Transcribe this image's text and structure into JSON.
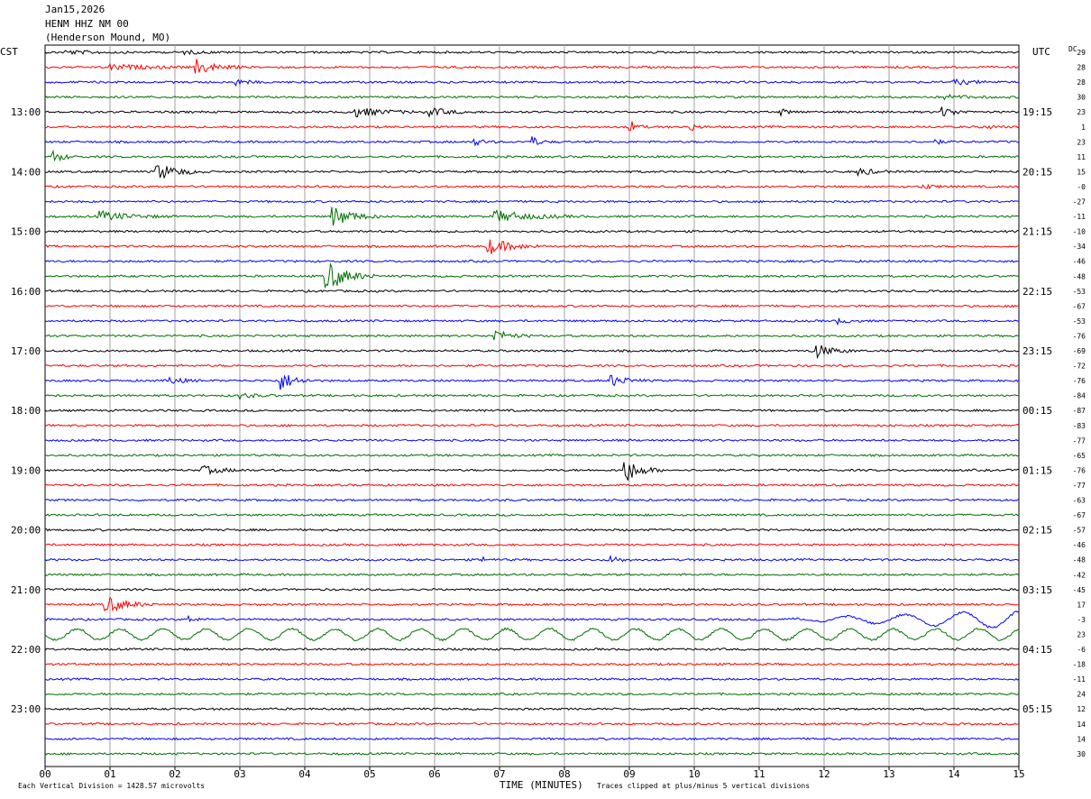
{
  "header": {
    "date": "Jan15,2026",
    "station": "HENM HHZ NM 00",
    "location": "(Henderson Mound, MO)"
  },
  "axis_labels": {
    "left": "CST",
    "right": "UTC",
    "dc": "DC",
    "x_title": "TIME (MINUTES)"
  },
  "footer": {
    "scale_note": "Each Vertical Division = 1428.57 microvolts",
    "clip_note": "Traces clipped at plus/minus 5 vertical divisions"
  },
  "colors": {
    "cycle": [
      "#000000",
      "#ff0000",
      "#0000ff",
      "#007000"
    ],
    "grid": "#a0a0a0"
  },
  "chart_data": {
    "type": "line",
    "title": "HENM HHZ NM 00",
    "xlabel": "TIME (MINUTES)",
    "xlim": [
      0,
      15
    ],
    "x_ticks": [
      "00",
      "01",
      "02",
      "03",
      "04",
      "05",
      "06",
      "07",
      "08",
      "09",
      "10",
      "11",
      "12",
      "13",
      "14",
      "15"
    ],
    "trace_count": 48,
    "left_time_labels": [
      {
        "row": 4,
        "label": "13:00"
      },
      {
        "row": 8,
        "label": "14:00"
      },
      {
        "row": 12,
        "label": "15:00"
      },
      {
        "row": 16,
        "label": "16:00"
      },
      {
        "row": 20,
        "label": "17:00"
      },
      {
        "row": 24,
        "label": "18:00"
      },
      {
        "row": 28,
        "label": "19:00"
      },
      {
        "row": 32,
        "label": "20:00"
      },
      {
        "row": 36,
        "label": "21:00"
      },
      {
        "row": 40,
        "label": "22:00"
      },
      {
        "row": 44,
        "label": "23:00"
      }
    ],
    "right_time_labels": [
      {
        "row": 4,
        "label": "19:15"
      },
      {
        "row": 8,
        "label": "20:15"
      },
      {
        "row": 12,
        "label": "21:15"
      },
      {
        "row": 16,
        "label": "22:15"
      },
      {
        "row": 20,
        "label": "23:15"
      },
      {
        "row": 24,
        "label": "00:15"
      },
      {
        "row": 28,
        "label": "01:15"
      },
      {
        "row": 32,
        "label": "02:15"
      },
      {
        "row": 36,
        "label": "03:15"
      },
      {
        "row": 40,
        "label": "04:15"
      },
      {
        "row": 44,
        "label": "05:15"
      }
    ],
    "dc_offsets": [
      "29",
      "28",
      "28",
      "30",
      "23",
      "1",
      "23",
      "11",
      "15",
      "-0",
      "-27",
      "-11",
      "-10",
      "-34",
      "-46",
      "-48",
      "-53",
      "-67",
      "-53",
      "-76",
      "-69",
      "-72",
      "-76",
      "-84",
      "-87",
      "-83",
      "-77",
      "-65",
      "-76",
      "-77",
      "-63",
      "-67",
      "-57",
      "-46",
      "-48",
      "-42",
      "-45",
      "17",
      "-3",
      "23",
      "-6",
      "-18",
      "-11",
      "24",
      "12",
      "14",
      "14",
      "30"
    ],
    "events": [
      {
        "row": 0,
        "minute": 0.3,
        "amp": 2,
        "dur": 1.2
      },
      {
        "row": 0,
        "minute": 2.1,
        "amp": 2,
        "dur": 0.8
      },
      {
        "row": 1,
        "minute": 2.3,
        "amp": 9,
        "dur": 0.8
      },
      {
        "row": 1,
        "minute": 1.0,
        "amp": 3,
        "dur": 1.5
      },
      {
        "row": 2,
        "minute": 2.9,
        "amp": 4,
        "dur": 0.5
      },
      {
        "row": 2,
        "minute": 14.0,
        "amp": 3,
        "dur": 0.8
      },
      {
        "row": 3,
        "minute": 13.8,
        "amp": 3,
        "dur": 0.9
      },
      {
        "row": 4,
        "minute": 4.7,
        "amp": 6,
        "dur": 1.2
      },
      {
        "row": 4,
        "minute": 5.9,
        "amp": 5,
        "dur": 0.8
      },
      {
        "row": 4,
        "minute": 11.3,
        "amp": 4,
        "dur": 0.4
      },
      {
        "row": 4,
        "minute": 13.8,
        "amp": 7,
        "dur": 0.5
      },
      {
        "row": 5,
        "minute": 9.0,
        "amp": 8,
        "dur": 0.3
      },
      {
        "row": 5,
        "minute": 9.9,
        "amp": 6,
        "dur": 0.3
      },
      {
        "row": 5,
        "minute": 14.4,
        "amp": 2,
        "dur": 0.6
      },
      {
        "row": 6,
        "minute": 6.6,
        "amp": 4,
        "dur": 0.4
      },
      {
        "row": 6,
        "minute": 7.5,
        "amp": 6,
        "dur": 0.3
      },
      {
        "row": 6,
        "minute": 13.7,
        "amp": 3,
        "dur": 0.3
      },
      {
        "row": 7,
        "minute": 0.1,
        "amp": 8,
        "dur": 0.4
      },
      {
        "row": 8,
        "minute": 1.7,
        "amp": 11,
        "dur": 0.8
      },
      {
        "row": 8,
        "minute": 12.5,
        "amp": 5,
        "dur": 0.6
      },
      {
        "row": 9,
        "minute": 13.5,
        "amp": 3,
        "dur": 0.5
      },
      {
        "row": 11,
        "minute": 0.8,
        "amp": 6,
        "dur": 1.2
      },
      {
        "row": 11,
        "minute": 4.4,
        "amp": 13,
        "dur": 0.8
      },
      {
        "row": 11,
        "minute": 6.9,
        "amp": 7,
        "dur": 1.4
      },
      {
        "row": 13,
        "minute": 6.8,
        "amp": 10,
        "dur": 0.9
      },
      {
        "row": 15,
        "minute": 4.3,
        "amp": 20,
        "dur": 0.8
      },
      {
        "row": 18,
        "minute": 12.2,
        "amp": 3,
        "dur": 0.5
      },
      {
        "row": 19,
        "minute": 6.9,
        "amp": 8,
        "dur": 0.6
      },
      {
        "row": 20,
        "minute": 11.8,
        "amp": 10,
        "dur": 0.7
      },
      {
        "row": 22,
        "minute": 3.6,
        "amp": 12,
        "dur": 0.6
      },
      {
        "row": 22,
        "minute": 1.9,
        "amp": 5,
        "dur": 0.5
      },
      {
        "row": 22,
        "minute": 8.7,
        "amp": 7,
        "dur": 0.6
      },
      {
        "row": 23,
        "minute": 3.0,
        "amp": 3,
        "dur": 0.6
      },
      {
        "row": 28,
        "minute": 2.4,
        "amp": 5,
        "dur": 0.8
      },
      {
        "row": 28,
        "minute": 8.9,
        "amp": 17,
        "dur": 0.6
      },
      {
        "row": 34,
        "minute": 6.7,
        "amp": 4,
        "dur": 0.3
      },
      {
        "row": 34,
        "minute": 8.7,
        "amp": 5,
        "dur": 0.4
      },
      {
        "row": 37,
        "minute": 0.9,
        "amp": 11,
        "dur": 0.8
      },
      {
        "row": 38,
        "minute": 2.2,
        "amp": 4,
        "dur": 0.3
      }
    ]
  }
}
